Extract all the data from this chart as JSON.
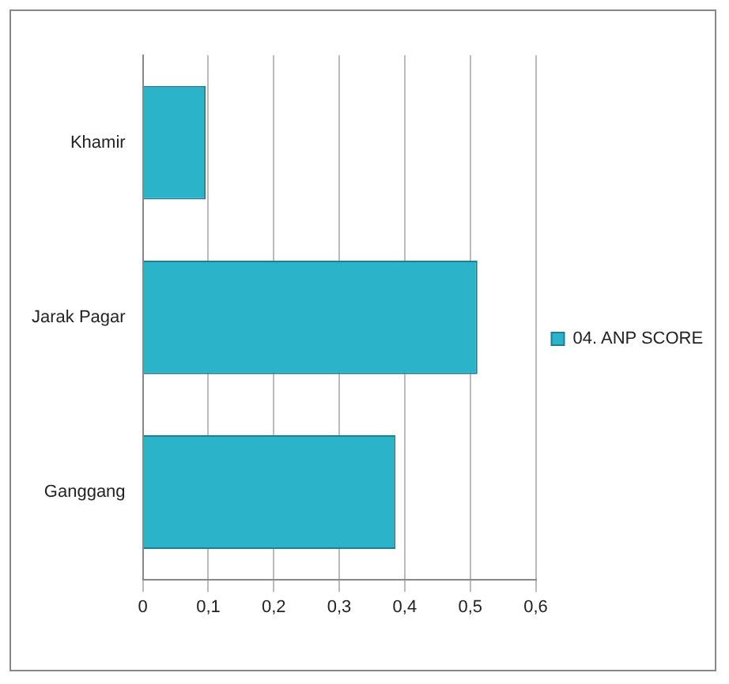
{
  "chart_data": {
    "type": "bar",
    "orientation": "horizontal",
    "categories": [
      "Khamir",
      "Jarak Pagar",
      "Ganggang"
    ],
    "series": [
      {
        "name": "04. ANP SCORE",
        "color": "#2ab3c9",
        "values": [
          0.096,
          0.511,
          0.386
        ]
      }
    ],
    "xlim": [
      0,
      0.6
    ],
    "xticks": [
      {
        "value": 0,
        "label": "0"
      },
      {
        "value": 0.1,
        "label": "0,1"
      },
      {
        "value": 0.2,
        "label": "0,2"
      },
      {
        "value": 0.3,
        "label": "0,3"
      },
      {
        "value": 0.4,
        "label": "0,4"
      },
      {
        "value": 0.5,
        "label": "0,5"
      },
      {
        "value": 0.6,
        "label": "0,6"
      }
    ],
    "grid": "x",
    "legend": "right"
  }
}
